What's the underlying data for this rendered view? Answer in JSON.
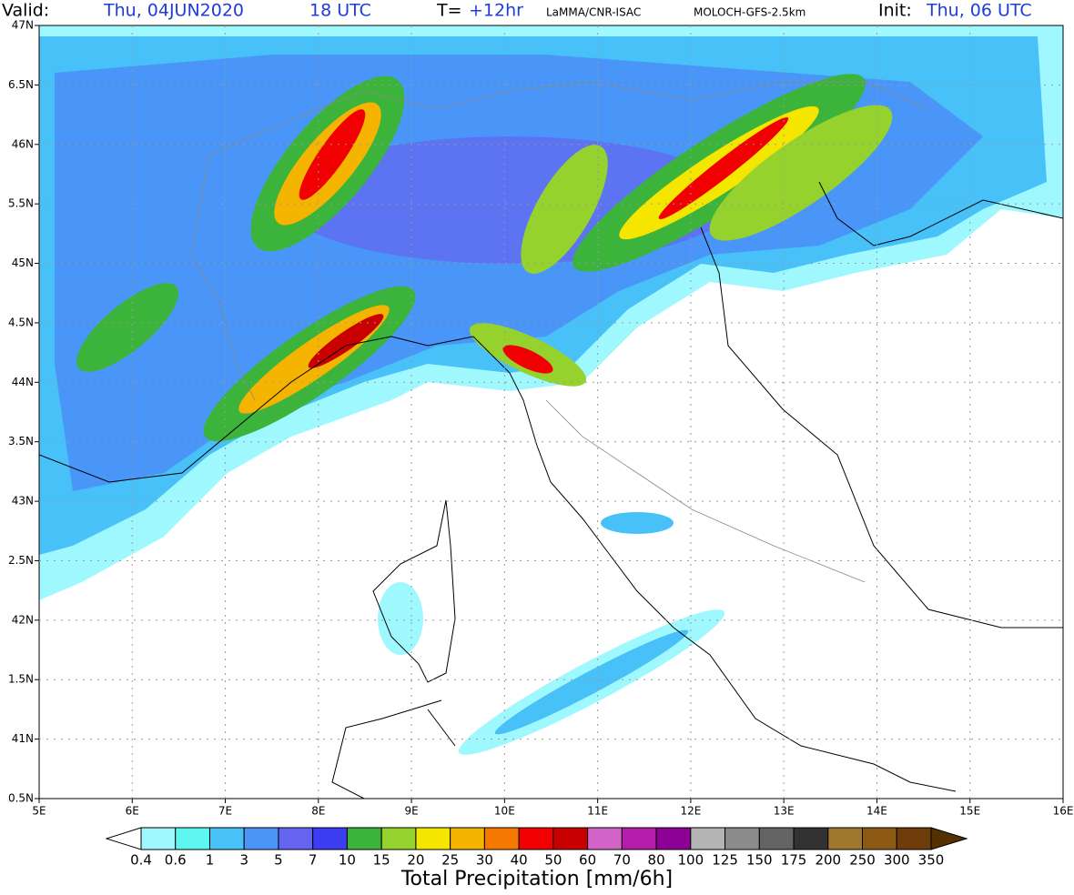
{
  "header": {
    "valid_label": "Valid:",
    "valid_date": "Thu, 04JUN2020",
    "valid_hour": "18 UTC",
    "t_label": "T=",
    "t_value": "+12hr",
    "source": "LaMMA/CNR-ISAC",
    "model": "MOLOCH-GFS-2.5km",
    "init_label": "Init:",
    "init_value": "Thu, 06 UTC"
  },
  "map": {
    "x_labels": [
      "5E",
      "6E",
      "7E",
      "8E",
      "9E",
      "10E",
      "11E",
      "12E",
      "13E",
      "14E",
      "15E",
      "16E"
    ],
    "y_labels": [
      "47N",
      "6.5N",
      "46N",
      "5.5N",
      "45N",
      "4.5N",
      "44N",
      "3.5N",
      "43N",
      "2.5N",
      "42N",
      "1.5N",
      "41N",
      "0.5N"
    ]
  },
  "colorbar": {
    "title": "Total Precipitation [mm/6h]",
    "labels": [
      "0.4",
      "0.6",
      "1",
      "3",
      "5",
      "7",
      "10",
      "15",
      "20",
      "25",
      "30",
      "40",
      "50",
      "60",
      "70",
      "80",
      "100",
      "125",
      "150",
      "175",
      "200",
      "250",
      "300",
      "350"
    ],
    "colors": [
      "#a0f8ff",
      "#5ff5f0",
      "#48c0f8",
      "#4a96f8",
      "#6464f0",
      "#3c3cf0",
      "#3cb43c",
      "#96d22d",
      "#f5e600",
      "#f5b400",
      "#f57800",
      "#f00000",
      "#c80000",
      "#d264c8",
      "#b41eaa",
      "#8c0096",
      "#b4b4b4",
      "#8c8c8c",
      "#646464",
      "#323232",
      "#a0782d",
      "#8c5a14",
      "#6e3c0a"
    ],
    "under_color": "#ffffff",
    "over_color": "#553000"
  }
}
